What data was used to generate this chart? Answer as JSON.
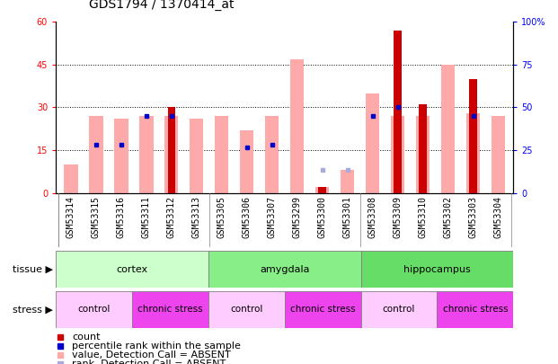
{
  "title": "GDS1794 / 1370414_at",
  "samples": [
    "GSM53314",
    "GSM53315",
    "GSM53316",
    "GSM53311",
    "GSM53312",
    "GSM53313",
    "GSM53305",
    "GSM53306",
    "GSM53307",
    "GSM53299",
    "GSM53300",
    "GSM53301",
    "GSM53308",
    "GSM53309",
    "GSM53310",
    "GSM53302",
    "GSM53303",
    "GSM53304"
  ],
  "count_values": [
    0,
    0,
    0,
    0,
    30,
    0,
    0,
    0,
    0,
    0,
    2,
    0,
    0,
    57,
    31,
    0,
    40,
    0
  ],
  "pink_values": [
    10,
    27,
    26,
    27,
    27,
    26,
    27,
    22,
    27,
    47,
    2,
    8,
    35,
    27,
    27,
    45,
    28,
    27
  ],
  "blue_dot_values": [
    0,
    17,
    17,
    27,
    27,
    0,
    0,
    16,
    17,
    0,
    0,
    0,
    27,
    30,
    0,
    0,
    27,
    0
  ],
  "light_blue_values": [
    0,
    0,
    0,
    0,
    0,
    0,
    0,
    0,
    0,
    0,
    8,
    8,
    0,
    0,
    0,
    0,
    0,
    0
  ],
  "ylim_left": [
    0,
    60
  ],
  "ylim_right": [
    0,
    100
  ],
  "yticks_left": [
    0,
    15,
    30,
    45,
    60
  ],
  "yticks_right": [
    0,
    25,
    50,
    75,
    100
  ],
  "tissue_groups": [
    {
      "label": "cortex",
      "start": 0,
      "end": 6,
      "color": "#ccffcc"
    },
    {
      "label": "amygdala",
      "start": 6,
      "end": 12,
      "color": "#88ee88"
    },
    {
      "label": "hippocampus",
      "start": 12,
      "end": 18,
      "color": "#66dd66"
    }
  ],
  "stress_groups": [
    {
      "label": "control",
      "start": 0,
      "end": 3,
      "color": "#ffccff"
    },
    {
      "label": "chronic stress",
      "start": 3,
      "end": 6,
      "color": "#ee44ee"
    },
    {
      "label": "control",
      "start": 6,
      "end": 9,
      "color": "#ffccff"
    },
    {
      "label": "chronic stress",
      "start": 9,
      "end": 12,
      "color": "#ee44ee"
    },
    {
      "label": "control",
      "start": 12,
      "end": 15,
      "color": "#ffccff"
    },
    {
      "label": "chronic stress",
      "start": 15,
      "end": 18,
      "color": "#ee44ee"
    }
  ],
  "count_color": "#cc0000",
  "pink_color": "#ffaaaa",
  "blue_color": "#0000cc",
  "light_blue_color": "#aaaadd",
  "title_fontsize": 10,
  "tick_fontsize": 7,
  "legend_fontsize": 8
}
